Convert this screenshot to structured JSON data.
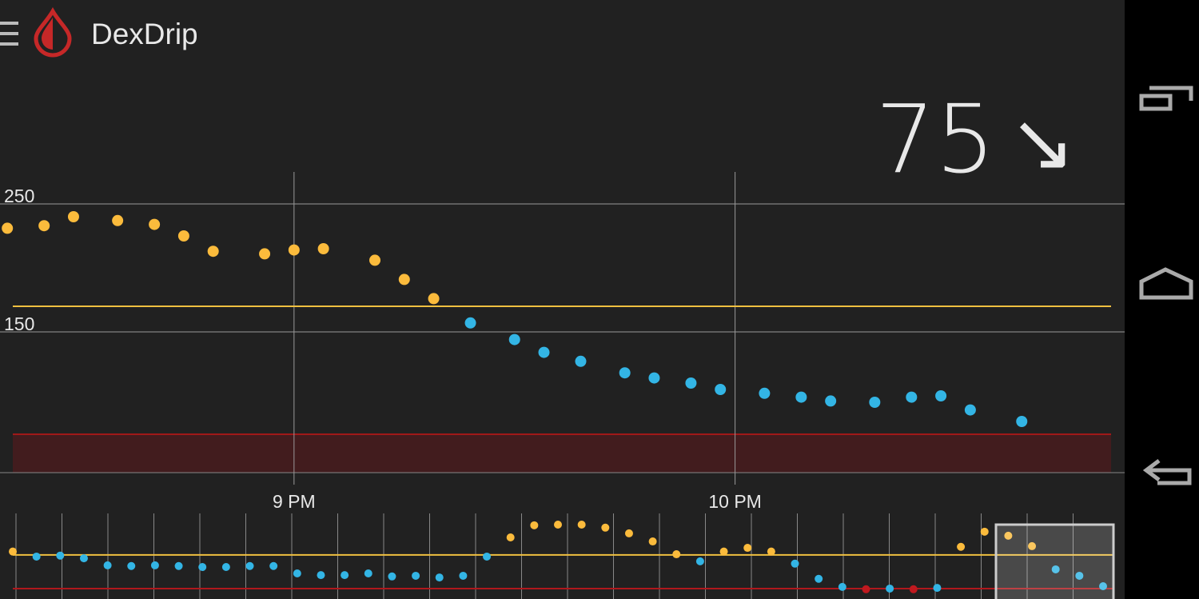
{
  "app": {
    "title": "DexDrip",
    "reading": "75",
    "trend": "↘"
  },
  "chart_data": [
    {
      "type": "scatter",
      "x": [
        1221,
        1226,
        1230,
        1236,
        1241,
        1245,
        1249,
        1256,
        1260,
        1264,
        1271,
        1275,
        1279,
        1284,
        1290,
        1294,
        1299,
        1305,
        1309,
        1314,
        1318,
        1324,
        1329,
        1333,
        1339,
        1344,
        1348,
        1352,
        1359
      ],
      "values": [
        231,
        233,
        240,
        237,
        234,
        225,
        213,
        211,
        214,
        215,
        206,
        191,
        176,
        157,
        144,
        134,
        127,
        118,
        114,
        110,
        105,
        102,
        99,
        96,
        95,
        99,
        100,
        89,
        80
      ],
      "xlim": [
        1220,
        1373
      ],
      "ylim": [
        40,
        275
      ],
      "xticks": [
        {
          "value": 1260,
          "label": "9 PM"
        },
        {
          "value": 1320,
          "label": "10 PM"
        }
      ],
      "yticks": [
        150,
        250
      ],
      "high": 170,
      "low": 70,
      "high_color": "#fbbb3c",
      "in_range_color": "#33b5e5",
      "low_color": "#c0191f",
      "high_line_color": "#f0c040",
      "low_band_color": "#421c1e",
      "grid": true
    },
    {
      "type": "preview",
      "values": [
        180,
        165,
        168,
        160,
        139,
        137,
        139,
        137,
        134,
        134,
        137,
        137,
        115,
        110,
        110,
        115,
        106,
        108,
        103,
        108,
        165,
        222,
        258,
        260,
        260,
        251,
        234,
        210,
        172,
        151,
        180,
        191,
        180,
        144,
        99,
        75,
        68,
        70,
        68,
        72,
        194,
        239,
        227,
        196,
        127,
        108,
        77
      ],
      "ylim": [
        39,
        298
      ],
      "high": 170,
      "low": 70,
      "high_color": "#fbbb3c",
      "in_range_color": "#33b5e5",
      "low_color": "#c0191f",
      "high_line_color": "#f0c040",
      "low_line_color": "#b0181c"
    }
  ]
}
